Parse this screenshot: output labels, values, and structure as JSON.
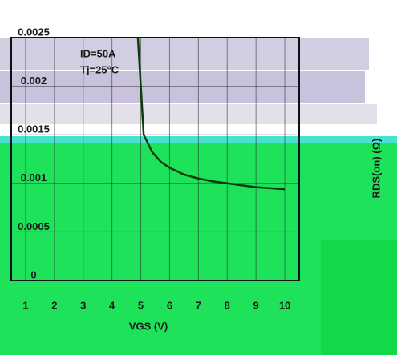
{
  "chart_data": {
    "type": "line",
    "annotations": [
      "ID=50A",
      "Tj=25°C"
    ],
    "xlabel": "VGS (V)",
    "ylabel": "RDS(on) (Ω)",
    "x": [
      4.9,
      5.1,
      5.4,
      5.7,
      6,
      6.5,
      7,
      7.5,
      8,
      8.5,
      9,
      9.5,
      10
    ],
    "series": [
      {
        "color": "#0b3d0b",
        "values": [
          0.0025,
          0.0015,
          0.00132,
          0.00122,
          0.00116,
          0.00109,
          0.00105,
          0.00102,
          0.001,
          0.00098,
          0.00096,
          0.00095,
          0.00094
        ]
      }
    ],
    "xlim": [
      0.5,
      10.5
    ],
    "xticks": [
      1,
      2,
      3,
      4,
      5,
      6,
      7,
      8,
      9,
      10
    ],
    "ylim": [
      0,
      0.0025
    ],
    "yticks": [
      0,
      0.0005,
      0.001,
      0.0015,
      0.002,
      0.0025
    ],
    "grid": true
  }
}
